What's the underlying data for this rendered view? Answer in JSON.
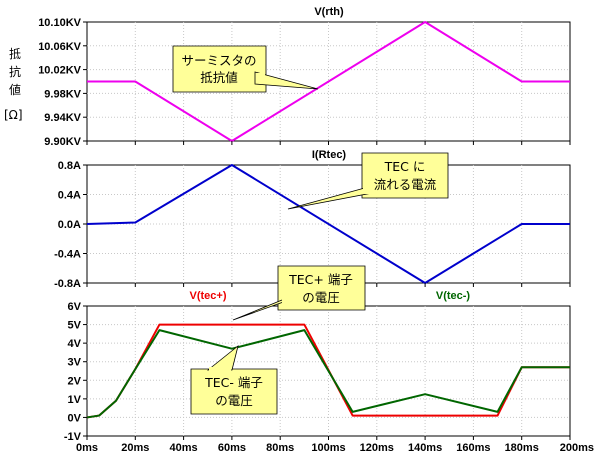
{
  "chart_data": [
    {
      "type": "line",
      "title": "V(rth)",
      "title_color": "#ee00ee",
      "ylabel_lines": [
        "抵",
        "抗",
        "値",
        "[Ω]"
      ],
      "ylim": [
        9.9,
        10.1
      ],
      "yticks": [
        "9.90KV",
        "9.94KV",
        "9.98KV",
        "10.02KV",
        "10.06KV",
        "10.10KV"
      ],
      "series": [
        {
          "name": "V(rth)",
          "color": "#ee00ee",
          "x": [
            0,
            20,
            60,
            140,
            180,
            200
          ],
          "y": [
            10.0,
            10.0,
            9.9,
            10.1,
            10.0,
            10.0
          ]
        }
      ],
      "callout_lines": [
        "サーミスタの",
        "抵抗値"
      ]
    },
    {
      "type": "line",
      "title": "I(Rtec)",
      "title_color": "#0000cc",
      "ylim": [
        -0.8,
        0.8
      ],
      "yticks": [
        "-0.8A",
        "-0.4A",
        "0.0A",
        "0.4A",
        "0.8A"
      ],
      "series": [
        {
          "name": "I(Rtec)",
          "color": "#0000cc",
          "x": [
            0,
            20,
            60,
            140,
            180,
            200
          ],
          "y": [
            0.0,
            0.02,
            0.8,
            -0.8,
            0.0,
            0.0
          ]
        }
      ],
      "callout_lines": [
        "TEC に",
        "流れる電流"
      ]
    },
    {
      "type": "line",
      "ylim": [
        -1,
        6
      ],
      "yticks": [
        "-1V",
        "0V",
        "1V",
        "2V",
        "3V",
        "4V",
        "5V",
        "6V"
      ],
      "series": [
        {
          "name": "V(tec+)",
          "color": "#ee0000",
          "x": [
            0,
            5,
            12,
            20,
            30,
            90,
            110,
            170,
            180,
            200
          ],
          "y": [
            0,
            0.1,
            0.9,
            2.6,
            5.0,
            5.0,
            0.1,
            0.1,
            2.7,
            2.7
          ]
        },
        {
          "name": "V(tec-)",
          "color": "#006600",
          "x": [
            0,
            5,
            12,
            20,
            30,
            60,
            90,
            110,
            140,
            170,
            180,
            200
          ],
          "y": [
            0,
            0.1,
            0.9,
            2.6,
            4.7,
            3.7,
            4.7,
            0.3,
            1.25,
            0.3,
            2.7,
            2.7
          ]
        }
      ],
      "callout_plus_lines": [
        "TEC+ 端子",
        "の電圧"
      ],
      "callout_minus_lines": [
        "TEC- 端子",
        "の電圧"
      ]
    }
  ],
  "x_axis": {
    "xlim": [
      0,
      200
    ],
    "ticks": [
      "0ms",
      "20ms",
      "40ms",
      "60ms",
      "80ms",
      "100ms",
      "120ms",
      "140ms",
      "160ms",
      "180ms",
      "200ms"
    ]
  },
  "colors": {
    "callout_fill": "#ffff99",
    "frame": "#000000",
    "grid": "#c8c8c8"
  }
}
